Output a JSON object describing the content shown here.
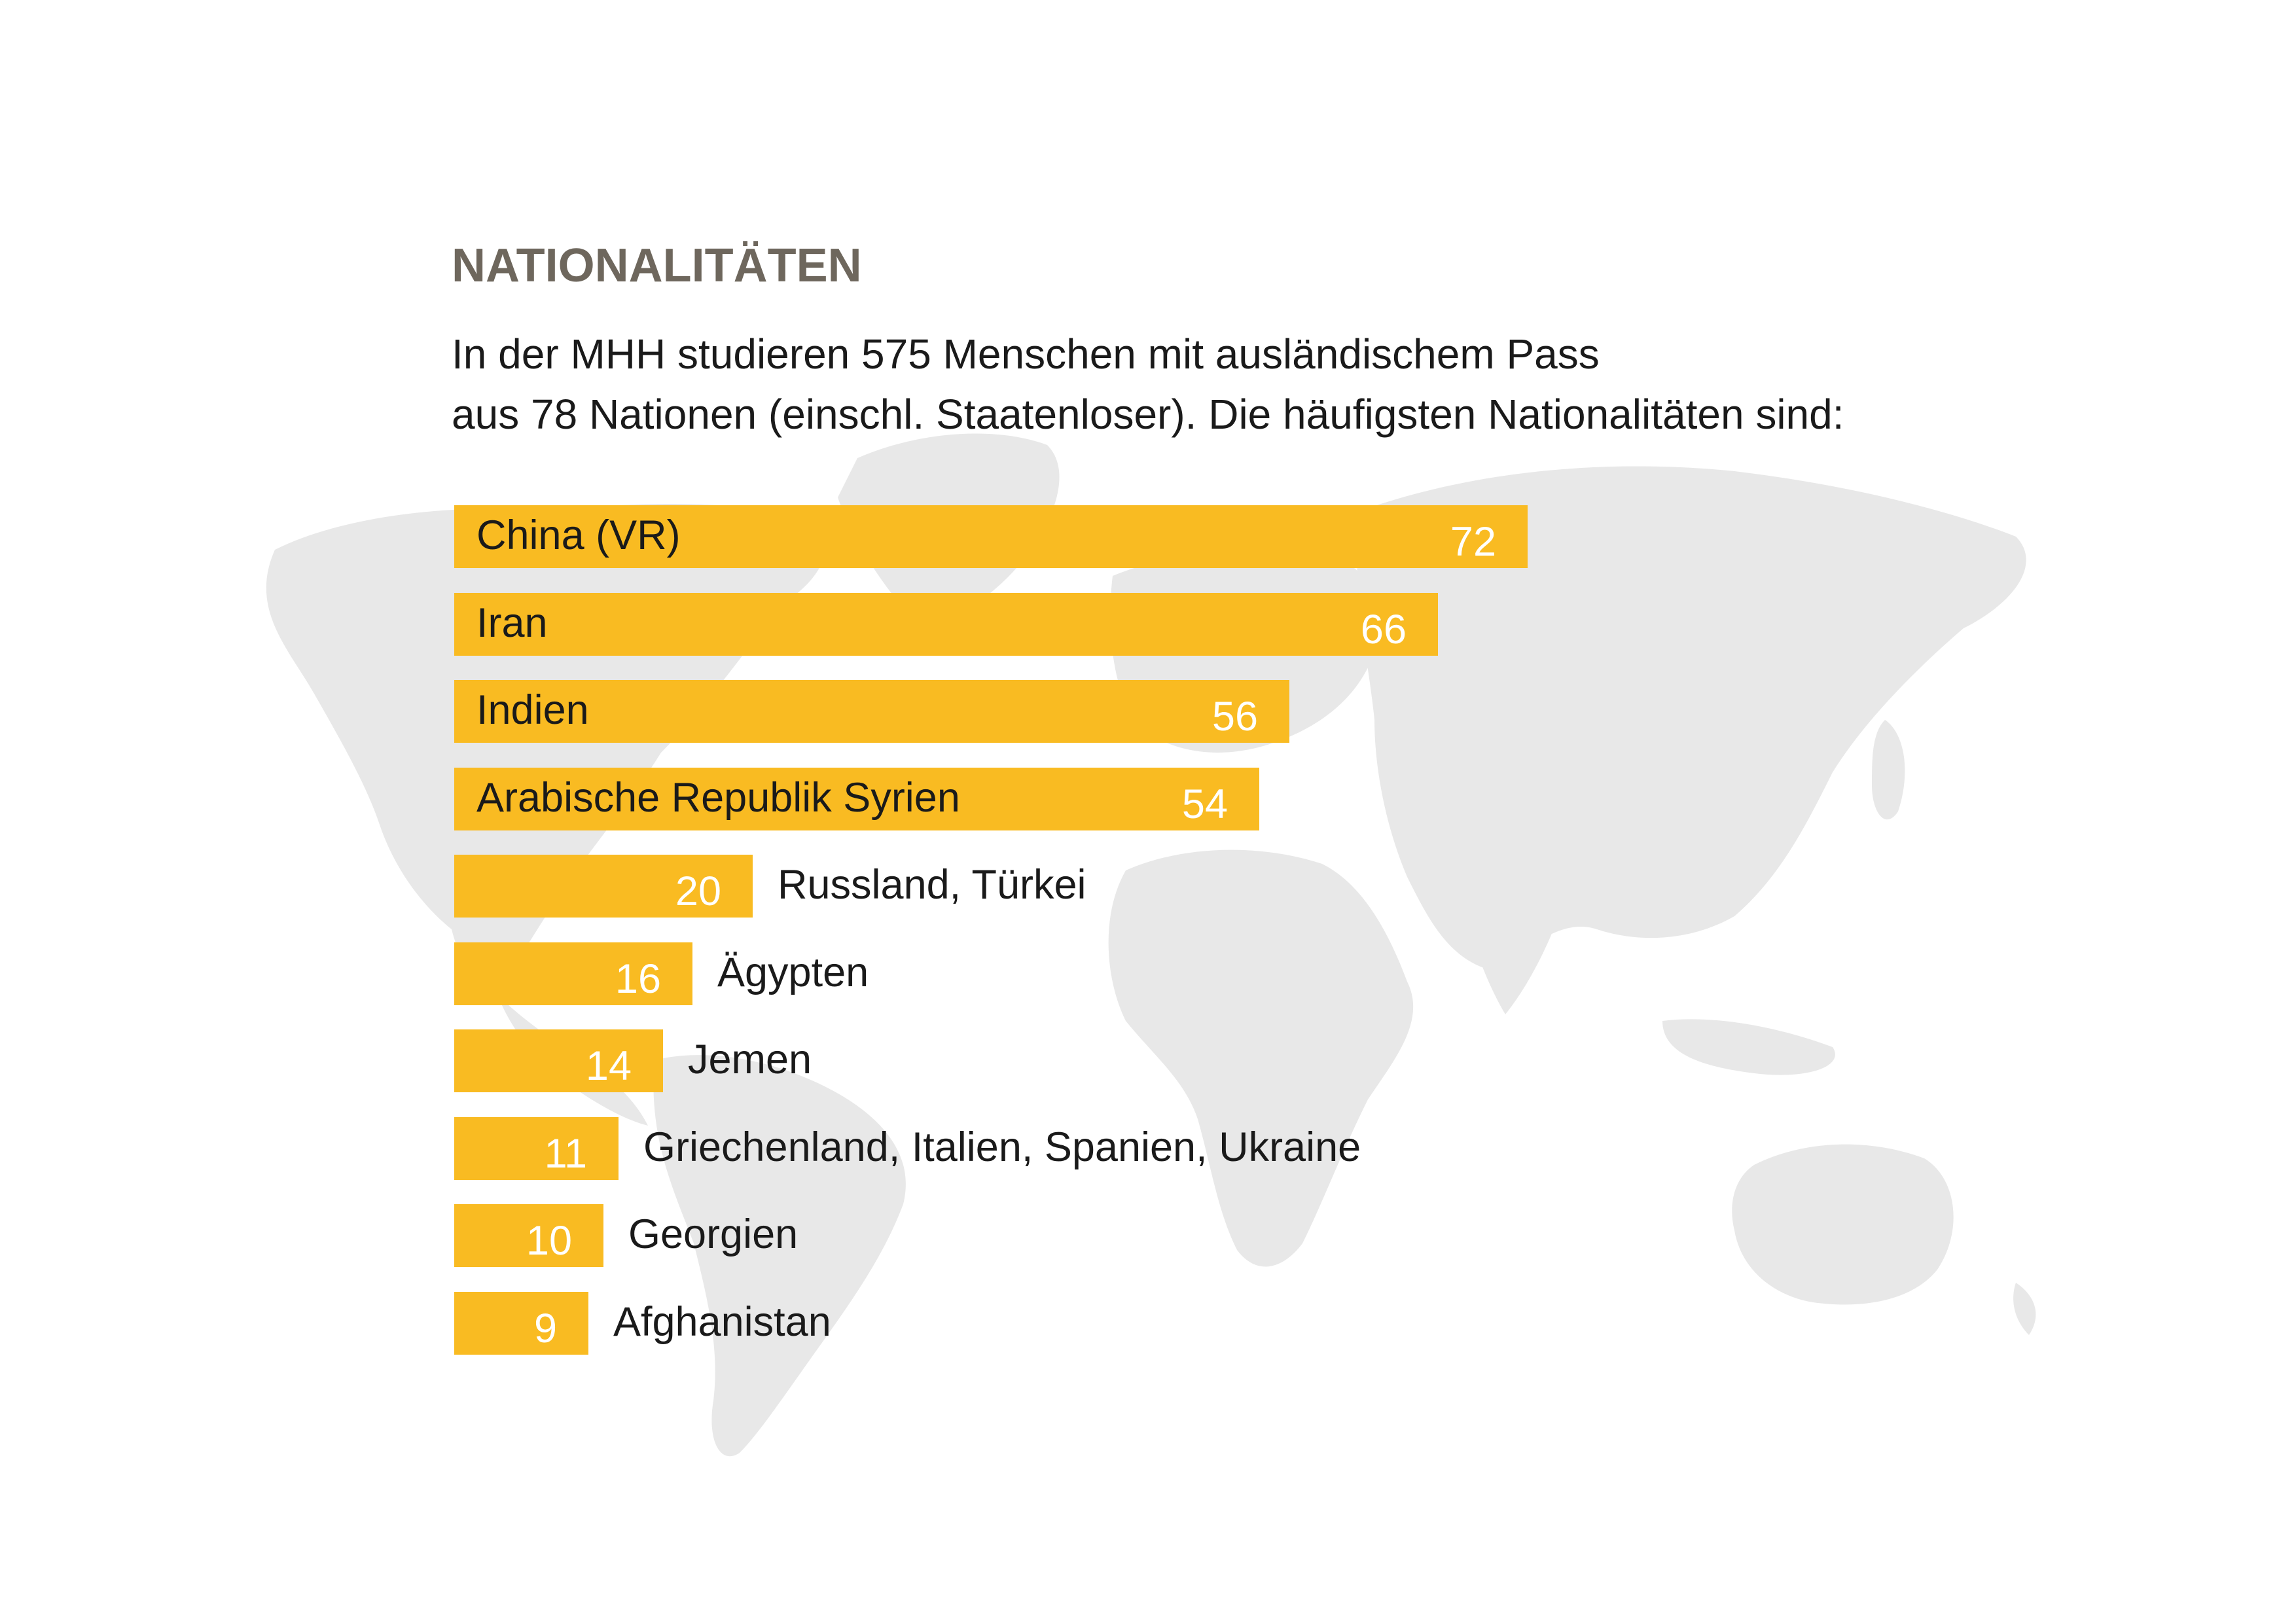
{
  "header": {
    "title": "NATIONALITÄTEN",
    "intro_line_1": "In der MHH studieren 575 Menschen mit ausländischem Pass",
    "intro_line_2": "aus 78 Nationen (einschl. Staatenloser). Die häufigsten Nationalitäten sind:"
  },
  "colors": {
    "bar": "#f9bb22",
    "title": "#6e675d",
    "map": "#e8e8e8"
  },
  "background": {
    "image": "world-map"
  },
  "chart_data": {
    "type": "bar",
    "orientation": "horizontal",
    "title": "",
    "xlabel": "",
    "ylabel": "",
    "grid": false,
    "xlim": [
      0,
      72
    ],
    "categories": [
      "China (VR)",
      "Iran",
      "Indien",
      "Arabische Republik Syrien",
      "Russland, Türkei",
      "Ägypten",
      "Jemen",
      "Griechenland, Italien, Spanien, Ukraine",
      "Georgien",
      "Afghanistan"
    ],
    "values": [
      72,
      66,
      56,
      54,
      20,
      16,
      14,
      11,
      10,
      9
    ],
    "value_labels": [
      "72",
      "66",
      "56",
      "54",
      "20",
      "16",
      "14",
      "11",
      "10",
      "9"
    ]
  }
}
